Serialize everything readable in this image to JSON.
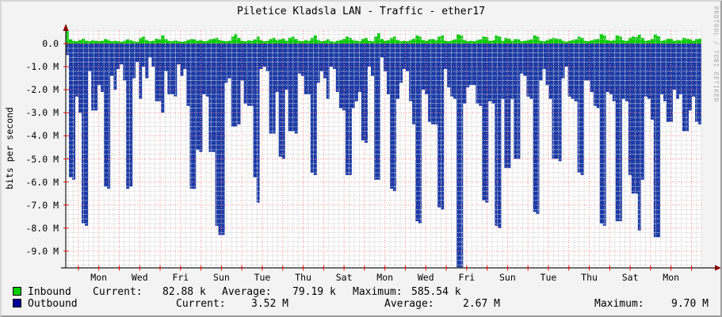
{
  "title": "Piletice Kladsla LAN - Traffic - ether17",
  "watermark": "RRDTOOL / TOBI OETIKER",
  "y_axis": {
    "label": "bits per second",
    "tick_labels": [
      "0.0",
      "-1.0 M",
      "-2.0 M",
      "-3.0 M",
      "-4.0 M",
      "-5.0 M",
      "-6.0 M",
      "-7.0 M",
      "-8.0 M",
      "-9.0 M"
    ],
    "tick_values": [
      0,
      -1,
      -2,
      -3,
      -4,
      -5,
      -6,
      -7,
      -8,
      -9
    ]
  },
  "x_axis": {
    "labels": [
      "Mon",
      "Wed",
      "Fri",
      "Sun",
      "Tue",
      "Thu",
      "Sat",
      "Mon",
      "Wed",
      "Fri",
      "Sun",
      "Tue",
      "Thu",
      "Sat",
      "Mon"
    ]
  },
  "legend": {
    "rows": [
      {
        "swatch": "#00cc00",
        "label": "Inbound",
        "current_label": "Current:",
        "current": "82.88 k",
        "average_label": "Average:",
        "average": "79.19 k",
        "maximum_label": "Maximum:",
        "maximum": "585.54 k"
      },
      {
        "swatch": "#000099",
        "label": "Outbound",
        "current_label": "Current:",
        "current": "3.52 M",
        "average_label": "Average:",
        "average": "2.67 M",
        "maximum_label": "Maximum:",
        "maximum": "9.70 M"
      }
    ]
  },
  "colors": {
    "inbound_area": "#00cc00",
    "outbound_area": "#1b3aa8",
    "major_grid": "#ff8a8a",
    "minor_grid": "#cfcfcf",
    "axis": "#1a1a1a",
    "arrow": "#8b0000",
    "tick": "#ff0000",
    "plot_background": "#ffffff",
    "window_background": "#f3f3f3"
  },
  "chart_data": {
    "type": "area",
    "title": "Piletice Kladsla LAN - Traffic - ether17",
    "ylabel": "bits per second",
    "y_unit": "Mbit/s",
    "ylim": [
      -9.75,
      0.55
    ],
    "grid": "dotted, minor 0.2M / major 1.0M horizontal, 6h minor / 1 day major vertical",
    "legend_position": "bottom",
    "x_axis_labels": [
      "Mon",
      "Wed",
      "Fri",
      "Sun",
      "Tue",
      "Thu",
      "Sat",
      "Mon",
      "Wed",
      "Fri",
      "Sun",
      "Tue",
      "Thu",
      "Sat",
      "Mon"
    ],
    "x_span": "approx. 31 days, 200 evenly spaced samples",
    "series": [
      {
        "name": "Inbound",
        "color": "#00cc00",
        "stats": {
          "current": "82.88 k",
          "average": "79.19 k",
          "maximum": "585.54 k"
        },
        "values": [
          0.55,
          0.18,
          0.12,
          0.1,
          0.15,
          0.22,
          0.12,
          0.1,
          0.14,
          0.12,
          0.1,
          0.12,
          0.2,
          0.15,
          0.1,
          0.12,
          0.1,
          0.08,
          0.12,
          0.18,
          0.14,
          0.1,
          0.08,
          0.25,
          0.3,
          0.15,
          0.1,
          0.12,
          0.22,
          0.18,
          0.35,
          0.2,
          0.12,
          0.1,
          0.14,
          0.1,
          0.08,
          0.1,
          0.15,
          0.2,
          0.18,
          0.12,
          0.15,
          0.1,
          0.12,
          0.18,
          0.22,
          0.25,
          0.15,
          0.12,
          0.1,
          0.12,
          0.3,
          0.42,
          0.25,
          0.12,
          0.1,
          0.14,
          0.12,
          0.18,
          0.3,
          0.15,
          0.1,
          0.12,
          0.2,
          0.25,
          0.15,
          0.18,
          0.22,
          0.12,
          0.25,
          0.3,
          0.2,
          0.12,
          0.1,
          0.15,
          0.12,
          0.25,
          0.35,
          0.15,
          0.1,
          0.12,
          0.18,
          0.1,
          0.08,
          0.12,
          0.15,
          0.2,
          0.3,
          0.25,
          0.15,
          0.12,
          0.1,
          0.2,
          0.25,
          0.12,
          0.1,
          0.3,
          0.45,
          0.2,
          0.12,
          0.15,
          0.25,
          0.3,
          0.15,
          0.1,
          0.12,
          0.1,
          0.15,
          0.22,
          0.35,
          0.3,
          0.15,
          0.12,
          0.18,
          0.2,
          0.15,
          0.3,
          0.35,
          0.12,
          0.1,
          0.14,
          0.18,
          0.4,
          0.35,
          0.15,
          0.1,
          0.12,
          0.1,
          0.15,
          0.18,
          0.3,
          0.28,
          0.12,
          0.14,
          0.35,
          0.3,
          0.12,
          0.25,
          0.22,
          0.12,
          0.2,
          0.18,
          0.1,
          0.12,
          0.15,
          0.18,
          0.35,
          0.3,
          0.12,
          0.1,
          0.15,
          0.2,
          0.25,
          0.22,
          0.2,
          0.12,
          0.08,
          0.12,
          0.15,
          0.18,
          0.3,
          0.25,
          0.12,
          0.1,
          0.14,
          0.18,
          0.2,
          0.42,
          0.35,
          0.15,
          0.12,
          0.15,
          0.35,
          0.3,
          0.14,
          0.12,
          0.25,
          0.3,
          0.28,
          0.38,
          0.25,
          0.12,
          0.14,
          0.2,
          0.4,
          0.32,
          0.12,
          0.15,
          0.22,
          0.2,
          0.12,
          0.15,
          0.14,
          0.25,
          0.22,
          0.18,
          0.12,
          0.2,
          0.22
        ]
      },
      {
        "name": "Outbound",
        "color": "#1b3aa8",
        "stats": {
          "current": "3.52 M",
          "average": "2.67 M",
          "maximum": "9.70 M"
        },
        "values": [
          -0.5,
          -5.8,
          -5.9,
          -2.3,
          -3.0,
          -7.8,
          -7.9,
          -1.2,
          -2.9,
          -2.9,
          -1.8,
          -2.1,
          -6.2,
          -6.3,
          -1.4,
          -2.0,
          -1.1,
          -0.9,
          -1.6,
          -6.3,
          -6.2,
          -1.5,
          -0.8,
          -2.4,
          -1.0,
          -1.5,
          -0.6,
          -1.0,
          -2.5,
          -2.5,
          -3.0,
          -1.2,
          -2.2,
          -2.2,
          -2.3,
          -0.9,
          -1.4,
          -1.1,
          -2.7,
          -6.3,
          -6.3,
          -4.6,
          -4.7,
          -2.2,
          -2.3,
          -4.7,
          -4.7,
          -7.9,
          -8.3,
          -8.3,
          -1.7,
          -1.5,
          -3.6,
          -3.6,
          -3.5,
          -1.6,
          -2.6,
          -2.7,
          -2.7,
          -5.8,
          -6.9,
          -1.1,
          -1.0,
          -1.2,
          -3.9,
          -3.9,
          -2.1,
          -4.9,
          -5.0,
          -2.0,
          -3.8,
          -3.8,
          -3.9,
          -1.3,
          -1.4,
          -2.2,
          -2.2,
          -5.6,
          -5.7,
          -1.7,
          -1.2,
          -1.5,
          -2.4,
          -1.0,
          -1.1,
          -2.1,
          -2.8,
          -2.9,
          -5.7,
          -5.7,
          -2.8,
          -2.5,
          -2.1,
          -4.2,
          -4.3,
          -1.0,
          -1.4,
          -5.9,
          -5.9,
          -0.6,
          -1.2,
          -2.2,
          -6.3,
          -6.4,
          -2.4,
          -1.7,
          -1.1,
          -1.2,
          -2.5,
          -3.5,
          -7.7,
          -7.8,
          -2.0,
          -2.2,
          -3.4,
          -3.5,
          -3.5,
          -7.1,
          -7.2,
          -1.1,
          -1.9,
          -2.3,
          -2.4,
          -9.7,
          -9.7,
          -2.6,
          -1.9,
          -1.8,
          -1.8,
          -2.6,
          -2.7,
          -6.8,
          -6.9,
          -2.5,
          -2.6,
          -7.9,
          -8.0,
          -2.4,
          -5.4,
          -5.4,
          -2.4,
          -5.0,
          -5.0,
          -1.3,
          -1.4,
          -2.3,
          -2.4,
          -7.3,
          -7.4,
          -1.6,
          -1.1,
          -1.8,
          -2.4,
          -5.0,
          -5.0,
          -5.1,
          -1.5,
          -1.0,
          -2.3,
          -2.4,
          -2.5,
          -5.6,
          -5.7,
          -1.6,
          -1.6,
          -2.1,
          -2.7,
          -2.8,
          -7.8,
          -7.9,
          -2.1,
          -2.2,
          -2.5,
          -7.7,
          -7.7,
          -2.4,
          -2.5,
          -5.7,
          -6.5,
          -6.5,
          -8.1,
          -5.9,
          -2.3,
          -2.4,
          -3.3,
          -8.4,
          -8.4,
          -2.2,
          -2.5,
          -3.4,
          -3.4,
          -2.0,
          -2.4,
          -2.2,
          -3.8,
          -3.8,
          -2.9,
          -2.3,
          -3.4,
          -3.5
        ]
      }
    ]
  }
}
